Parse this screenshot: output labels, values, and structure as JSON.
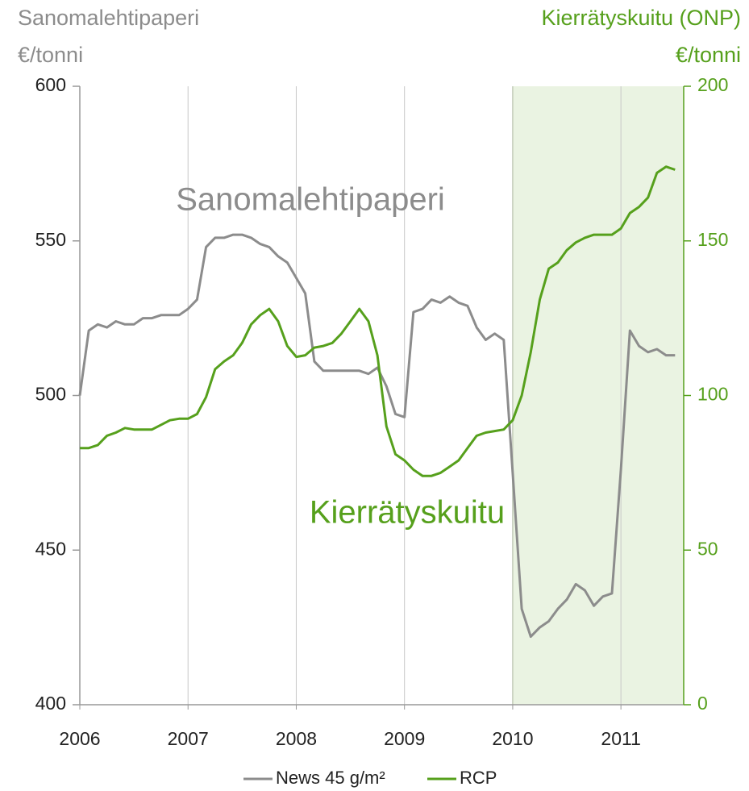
{
  "chart_data": {
    "type": "line",
    "ylabel": [
      "Sanomalehtipaperi",
      "€/tonni"
    ],
    "y2label": [
      "Kierrätyskuitu (ONP)",
      "€/tonni"
    ],
    "annotations": [
      "Sanomalehtipaperi",
      "Kierrätyskuitu"
    ],
    "x": [
      2006,
      2006.083,
      2006.167,
      2006.25,
      2006.333,
      2006.417,
      2006.5,
      2006.583,
      2006.667,
      2006.75,
      2006.833,
      2006.917,
      2007,
      2007.083,
      2007.167,
      2007.25,
      2007.333,
      2007.417,
      2007.5,
      2007.583,
      2007.667,
      2007.75,
      2007.833,
      2007.917,
      2008,
      2008.083,
      2008.167,
      2008.25,
      2008.333,
      2008.417,
      2008.5,
      2008.583,
      2008.667,
      2008.75,
      2008.833,
      2008.917,
      2009,
      2009.083,
      2009.167,
      2009.25,
      2009.333,
      2009.417,
      2009.5,
      2009.583,
      2009.667,
      2009.75,
      2009.833,
      2009.917,
      2010,
      2010.083,
      2010.167,
      2010.25,
      2010.333,
      2010.417,
      2010.5,
      2010.583,
      2010.667,
      2010.75,
      2010.833,
      2010.917,
      2011,
      2011.083,
      2011.167,
      2011.25,
      2011.333,
      2011.417,
      2011.5
    ],
    "series": [
      {
        "name": "News 45 g/m²",
        "color": "#8c8c8c",
        "axis": "y",
        "values": [
          500,
          521,
          523,
          522,
          524,
          523,
          523,
          525,
          525,
          526,
          526,
          526,
          528,
          531,
          548,
          551,
          551,
          552,
          552,
          551,
          549,
          548,
          545,
          543,
          538,
          533,
          511,
          508,
          508,
          508,
          508,
          508,
          507,
          509,
          503,
          494,
          493,
          527,
          528,
          531,
          530,
          532,
          530,
          529,
          522,
          518,
          520,
          518,
          475,
          431,
          422,
          425,
          427,
          431,
          434,
          439,
          437,
          432,
          435,
          436,
          476,
          521,
          516,
          514,
          515,
          513,
          513
        ]
      },
      {
        "name": "RCP",
        "color": "#56a01c",
        "axis": "y2",
        "values": [
          83,
          83,
          84,
          87,
          88,
          89.5,
          89,
          89,
          89,
          90.5,
          92,
          92.5,
          92.5,
          94,
          99.5,
          108.5,
          111,
          113,
          117,
          123,
          126,
          128,
          124,
          116,
          112.5,
          113,
          115.5,
          116,
          117,
          120,
          124,
          128,
          124,
          113,
          90,
          81,
          79,
          76,
          74,
          74,
          75,
          77,
          79,
          83,
          87,
          88,
          88.5,
          89,
          92,
          100,
          114,
          131,
          141,
          143,
          147,
          149.5,
          151,
          152,
          152,
          152,
          154,
          159,
          161,
          164,
          172,
          174,
          173
        ]
      }
    ],
    "xlim": [
      2006,
      2011.58
    ],
    "xticks": [
      2006,
      2007,
      2008,
      2009,
      2010,
      2011
    ],
    "ylim": [
      400,
      600
    ],
    "yticks": [
      400,
      450,
      500,
      550,
      600
    ],
    "y2lim": [
      0,
      200
    ],
    "y2ticks": [
      0,
      50,
      100,
      150,
      200
    ],
    "highlight": {
      "from": 2010,
      "color": "#eaf3e2"
    },
    "grid": true,
    "legend": "bottom"
  }
}
